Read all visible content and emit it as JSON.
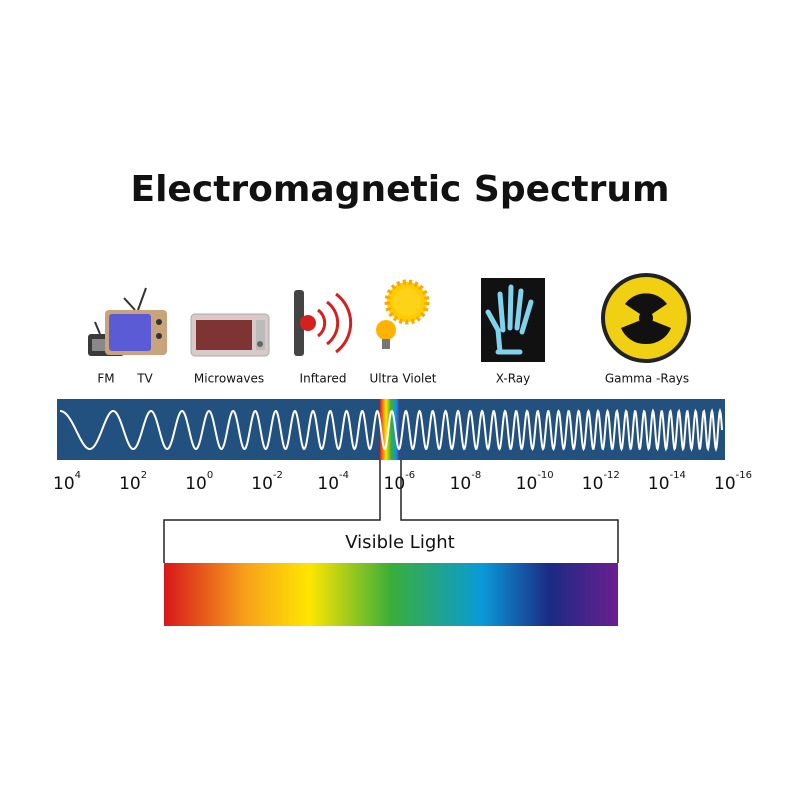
{
  "title": "Electromagnetic Spectrum",
  "bands": [
    {
      "label": "FM"
    },
    {
      "label": "TV"
    },
    {
      "label": "Microwaves"
    },
    {
      "label": "Inftared"
    },
    {
      "label": "Ultra Violet"
    },
    {
      "label": "X-Ray"
    },
    {
      "label": "Gamma -Rays"
    }
  ],
  "scale": [
    {
      "base": "10",
      "exponent": "4"
    },
    {
      "base": "10",
      "exponent": "2"
    },
    {
      "base": "10",
      "exponent": "0"
    },
    {
      "base": "10",
      "exponent": "-2"
    },
    {
      "base": "10",
      "exponent": "-4"
    },
    {
      "base": "10",
      "exponent": "-6"
    },
    {
      "base": "10",
      "exponent": "-8"
    },
    {
      "base": "10",
      "exponent": "-10"
    },
    {
      "base": "10",
      "exponent": "-12"
    },
    {
      "base": "10",
      "exponent": "-14"
    },
    {
      "base": "10",
      "exponent": "-16"
    }
  ],
  "visible": {
    "label": "Visible Light"
  }
}
